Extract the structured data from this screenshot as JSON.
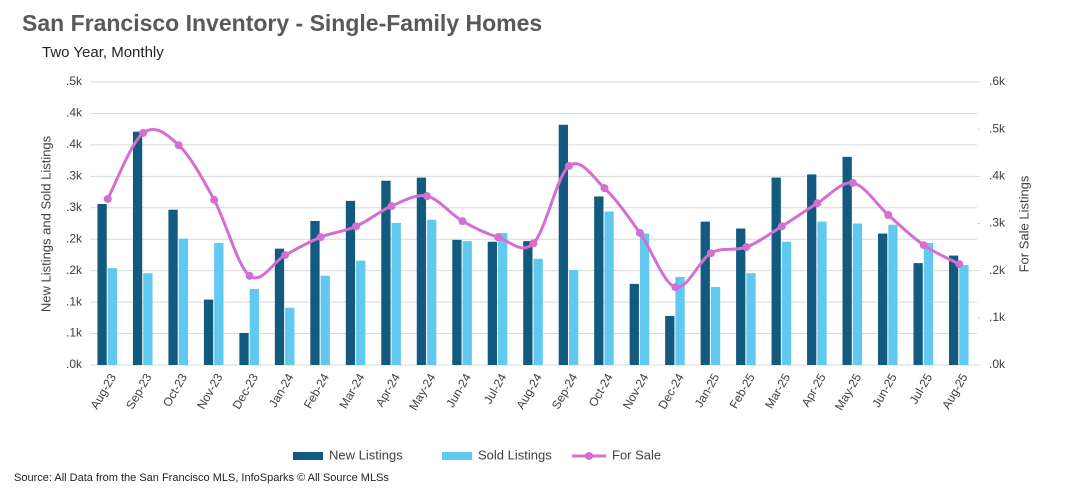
{
  "chart_data": {
    "type": "bar-line",
    "title": "San Francisco Inventory - Single-Family Homes",
    "subtitle": "Two Year, Monthly",
    "y_axis_label": "New Listings and Sold Listings",
    "y2_axis_label": "For Sale Listings",
    "source": "Source: All Data from the San Francisco MLS, InfoSparks © All Source MLSs",
    "categories": [
      "Aug-23",
      "Sep-23",
      "Oct-23",
      "Nov-23",
      "Dec-23",
      "Jan-24",
      "Feb-24",
      "Mar-24",
      "Apr-24",
      "May-24",
      "Jun-24",
      "Jul-24",
      "Aug-24",
      "Sep-24",
      "Oct-24",
      "Nov-24",
      "Dec-24",
      "Jan-25",
      "Feb-25",
      "Mar-25",
      "Apr-25",
      "May-25",
      "Jun-25",
      "Jul-25",
      "Aug-25"
    ],
    "series": [
      {
        "name": "New Listings",
        "color": "#125b7f",
        "kind": "bar",
        "values": [
          256,
          371,
          247,
          104,
          51,
          185,
          229,
          261,
          293,
          298,
          199,
          196,
          197,
          382,
          268,
          129,
          78,
          228,
          217,
          298,
          303,
          331,
          209,
          162,
          174
        ]
      },
      {
        "name": "Sold Listings",
        "color": "#61c8ef",
        "kind": "bar",
        "values": [
          154,
          146,
          201,
          194,
          121,
          91,
          142,
          166,
          226,
          231,
          197,
          210,
          169,
          151,
          244,
          209,
          140,
          124,
          146,
          196,
          228,
          225,
          223,
          194,
          159
        ]
      },
      {
        "name": "For Sale",
        "color": "#d46fd2",
        "kind": "line",
        "axis": "y2",
        "values": [
          352,
          492,
          466,
          350,
          189,
          233,
          271,
          294,
          337,
          358,
          305,
          271,
          258,
          422,
          375,
          280,
          165,
          237,
          250,
          294,
          343,
          386,
          318,
          254,
          214
        ]
      }
    ],
    "ylim": [
      0,
      450
    ],
    "yticks": [
      {
        "value": 0,
        "label": ".0k"
      },
      {
        "value": 50,
        "label": ".1k"
      },
      {
        "value": 100,
        "label": ".1k"
      },
      {
        "value": 150,
        "label": ".2k"
      },
      {
        "value": 200,
        "label": ".2k"
      },
      {
        "value": 250,
        "label": ".3k"
      },
      {
        "value": 300,
        "label": ".3k"
      },
      {
        "value": 350,
        "label": ".4k"
      },
      {
        "value": 400,
        "label": ".4k"
      },
      {
        "value": 450,
        "label": ".5k"
      }
    ],
    "y2lim": [
      0,
      600
    ],
    "y2ticks": [
      {
        "value": 0,
        "label": ".0k"
      },
      {
        "value": 100,
        "label": ".1k"
      },
      {
        "value": 200,
        "label": ".2k"
      },
      {
        "value": 300,
        "label": ".3k"
      },
      {
        "value": 400,
        "label": ".4k"
      },
      {
        "value": 500,
        "label": ".5k"
      },
      {
        "value": 600,
        "label": ".6k"
      }
    ],
    "grid": true,
    "legend": "bottom"
  }
}
